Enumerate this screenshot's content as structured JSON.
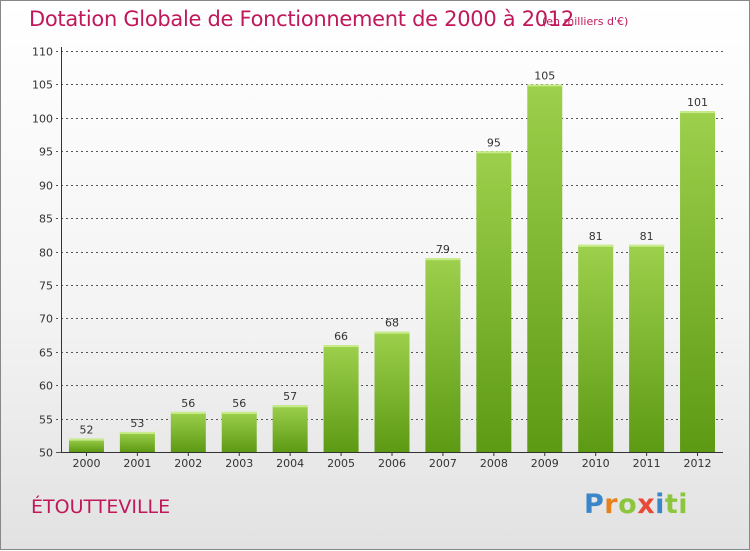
{
  "title": "Dotation Globale de Fonctionnement de 2000 à 2012",
  "unit_note": "(en milliers d'€)",
  "town": "ÉTOUTTEVILLE",
  "logo": {
    "letters": [
      "P",
      "r",
      "o",
      "x",
      "i",
      "ti"
    ]
  },
  "colors": {
    "title": "#c0185a",
    "bar_top": "#9dd04c",
    "bar_bottom": "#5d9a14",
    "grid": "#555555"
  },
  "chart_data": {
    "type": "bar",
    "title": "Dotation Globale de Fonctionnement de 2000 à 2012",
    "unit": "(en milliers d'€)",
    "categories": [
      "2000",
      "2001",
      "2002",
      "2003",
      "2004",
      "2005",
      "2006",
      "2007",
      "2008",
      "2009",
      "2010",
      "2011",
      "2012"
    ],
    "values": [
      52,
      53,
      56,
      56,
      57,
      66,
      68,
      79,
      95,
      105,
      81,
      81,
      101
    ],
    "ylim": [
      50,
      110
    ],
    "yticks": [
      50,
      55,
      60,
      65,
      70,
      75,
      80,
      85,
      90,
      95,
      100,
      105,
      110
    ],
    "xlabel": "",
    "ylabel": "",
    "grid": true,
    "data_labels": true
  }
}
